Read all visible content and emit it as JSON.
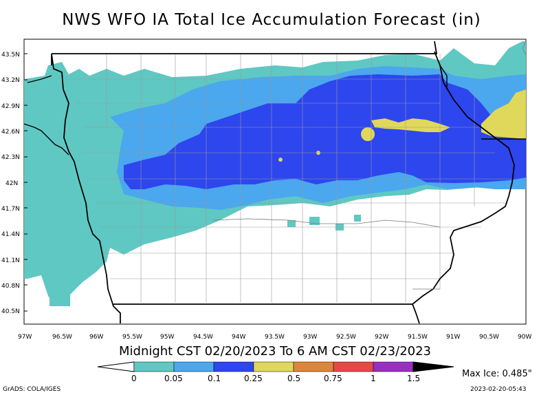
{
  "title": "NWS WFO IA Total Ice Accumulation Forecast (in)",
  "subtitle": "Midnight CST 02/20/2023 To 6 AM CST 02/23/2023",
  "max_ice_text": "Max Ice: 0.485\"",
  "credit": "GrADS: COLA/IGES",
  "timestamp": "2023-02-20-05:43",
  "lat_labels": [
    "43.5N",
    "43.2N",
    "42.9N",
    "42.6N",
    "42.3N",
    "42N",
    "41.7N",
    "41.4N",
    "41.1N",
    "40.8N",
    "40.5N"
  ],
  "lon_labels": [
    "97W",
    "96.5W",
    "96W",
    "95.5W",
    "95W",
    "94.5W",
    "94W",
    "93.5W",
    "93W",
    "92.5W",
    "92W",
    "91.5W",
    "91W",
    "90.5W",
    "90W"
  ],
  "colorbar": {
    "labels": [
      "0",
      "0.05",
      "0.1",
      "0.25",
      "0.5",
      "0.75",
      "1",
      "1.5"
    ],
    "colors": [
      "#5fc8c3",
      "#4ba7ee",
      "#2e46ee",
      "#e0d85a",
      "#de8637",
      "#e64848",
      "#9a2ec4"
    ]
  },
  "colors": {
    "ice_0": "#5fc8c3",
    "ice_005": "#4ba7ee",
    "ice_01": "#2e46ee",
    "ice_025": "#e0d85a"
  }
}
